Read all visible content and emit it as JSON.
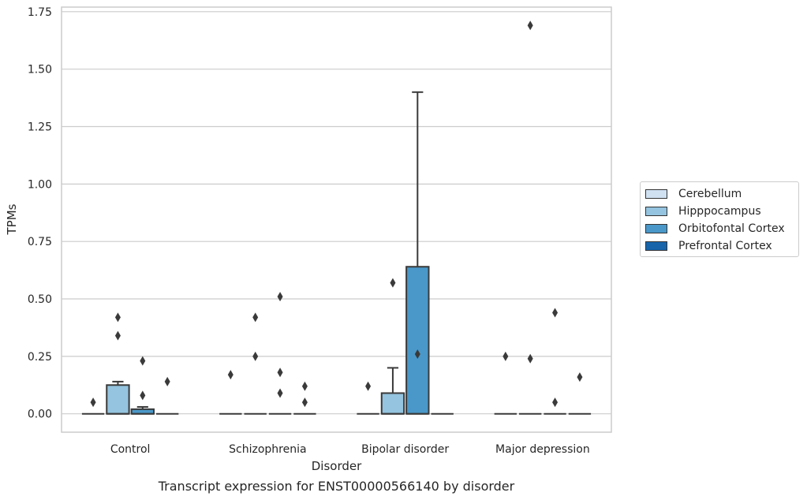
{
  "chart_data": {
    "type": "box",
    "title": "Transcript expression for ENST00000566140 by disorder",
    "xlabel": "Disorder",
    "ylabel": "TPMs",
    "ylim": [
      -0.08,
      1.77
    ],
    "yticks": [
      0.0,
      0.25,
      0.5,
      0.75,
      1.0,
      1.25,
      1.5,
      1.75
    ],
    "ytick_labels": [
      "0.00",
      "0.25",
      "0.50",
      "0.75",
      "1.00",
      "1.25",
      "1.50",
      "1.75"
    ],
    "categories": [
      "Control",
      "Schizophrenia",
      "Bipolar disorder",
      "Major depression"
    ],
    "grid": true,
    "legend_position": "right",
    "series": [
      {
        "name": "Cerebellum",
        "color": "#d0e1f2",
        "boxes": [
          {
            "category": "Control",
            "q1": 0,
            "median": 0,
            "q3": 0,
            "whisker_low": 0,
            "whisker_high": 0,
            "outliers": [
              0.05
            ]
          },
          {
            "category": "Schizophrenia",
            "q1": 0,
            "median": 0,
            "q3": 0,
            "whisker_low": 0,
            "whisker_high": 0,
            "outliers": [
              0.17
            ]
          },
          {
            "category": "Bipolar disorder",
            "q1": 0,
            "median": 0,
            "q3": 0,
            "whisker_low": 0,
            "whisker_high": 0,
            "outliers": [
              0.12
            ]
          },
          {
            "category": "Major depression",
            "q1": 0,
            "median": 0,
            "q3": 0,
            "whisker_low": 0,
            "whisker_high": 0,
            "outliers": [
              0.25
            ]
          }
        ]
      },
      {
        "name": "Hipppocampus",
        "color": "#94c4df",
        "boxes": [
          {
            "category": "Control",
            "q1": 0,
            "median": 0,
            "q3": 0.125,
            "whisker_low": 0,
            "whisker_high": 0.14,
            "outliers": [
              0.42,
              0.34
            ]
          },
          {
            "category": "Schizophrenia",
            "q1": 0,
            "median": 0,
            "q3": 0,
            "whisker_low": 0,
            "whisker_high": 0,
            "outliers": [
              0.42,
              0.25
            ]
          },
          {
            "category": "Bipolar disorder",
            "q1": 0,
            "median": 0,
            "q3": 0.09,
            "whisker_low": 0,
            "whisker_high": 0.2,
            "outliers": [
              0.57
            ]
          },
          {
            "category": "Major depression",
            "q1": 0,
            "median": 0,
            "q3": 0,
            "whisker_low": 0,
            "whisker_high": 0,
            "outliers": [
              1.69,
              0.24
            ]
          }
        ]
      },
      {
        "name": "Orbitofontal Cortex",
        "color": "#4a98c9",
        "boxes": [
          {
            "category": "Control",
            "q1": 0,
            "median": 0,
            "q3": 0.02,
            "whisker_low": 0,
            "whisker_high": 0.03,
            "outliers": [
              0.23,
              0.08
            ]
          },
          {
            "category": "Schizophrenia",
            "q1": 0,
            "median": 0,
            "q3": 0,
            "whisker_low": 0,
            "whisker_high": 0,
            "outliers": [
              0.51,
              0.18,
              0.09
            ]
          },
          {
            "category": "Bipolar disorder",
            "q1": 0,
            "median": 0,
            "q3": 0.64,
            "whisker_low": 0,
            "whisker_high": 1.4,
            "outliers": [
              0.26
            ]
          },
          {
            "category": "Major depression",
            "q1": 0,
            "median": 0,
            "q3": 0,
            "whisker_low": 0,
            "whisker_high": 0,
            "outliers": [
              0.44,
              0.05
            ]
          }
        ]
      },
      {
        "name": "Prefrontal Cortex",
        "color": "#1764ab",
        "boxes": [
          {
            "category": "Control",
            "q1": 0,
            "median": 0,
            "q3": 0,
            "whisker_low": 0,
            "whisker_high": 0,
            "outliers": [
              0.14
            ]
          },
          {
            "category": "Schizophrenia",
            "q1": 0,
            "median": 0,
            "q3": 0,
            "whisker_low": 0,
            "whisker_high": 0,
            "outliers": [
              0.12,
              0.05
            ]
          },
          {
            "category": "Bipolar disorder",
            "q1": 0,
            "median": 0,
            "q3": 0,
            "whisker_low": 0,
            "whisker_high": 0,
            "outliers": []
          },
          {
            "category": "Major depression",
            "q1": 0,
            "median": 0,
            "q3": 0,
            "whisker_low": 0,
            "whisker_high": 0,
            "outliers": [
              0.16
            ]
          }
        ]
      }
    ]
  }
}
